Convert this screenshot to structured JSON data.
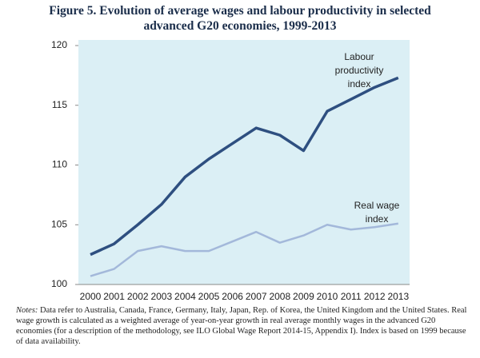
{
  "chart_data": {
    "type": "line",
    "title": [
      "Figure 5.  Evolution of average wages and labour productivity in selected",
      "advanced G20 economies, 1999-2013"
    ],
    "categories": [
      "2000",
      "2001",
      "2002",
      "2003",
      "2004",
      "2005",
      "2006",
      "2007",
      "2008",
      "2009",
      "2010",
      "2011",
      "2012",
      "2013"
    ],
    "series": [
      {
        "color": "#2e4f80",
        "values": [
          102.5,
          103.4,
          105.0,
          106.7,
          109.0,
          110.5,
          111.8,
          113.1,
          112.5,
          111.2,
          114.5,
          115.5,
          116.5,
          117.3
        ]
      },
      {
        "color": "#a3b8da",
        "values": [
          100.7,
          101.3,
          102.8,
          103.2,
          102.8,
          102.8,
          103.6,
          104.4,
          103.5,
          104.1,
          105.0,
          104.6,
          104.8,
          105.1
        ]
      }
    ],
    "annotations": [
      {
        "lines": [
          "Labour",
          "productivity",
          "index"
        ]
      },
      {
        "lines": [
          "Real wage",
          "index"
        ]
      }
    ],
    "ylim": [
      100,
      120
    ],
    "yticks": [
      100,
      105,
      110,
      115,
      120
    ],
    "grid": false,
    "notes_label": "Notes:",
    "notes": "Data refer to Australia, Canada, France, Germany, Italy, Japan, Rep. of Korea, the United Kingdom and the United States. Real wage growth is calculated as a weighted average of year-on-year growth in real average monthly wages in the advanced G20 economies (for a description of the methodology, see ILO Global Wage Report 2014-15, Appendix I). Index is based on 1999 because of data availability."
  }
}
